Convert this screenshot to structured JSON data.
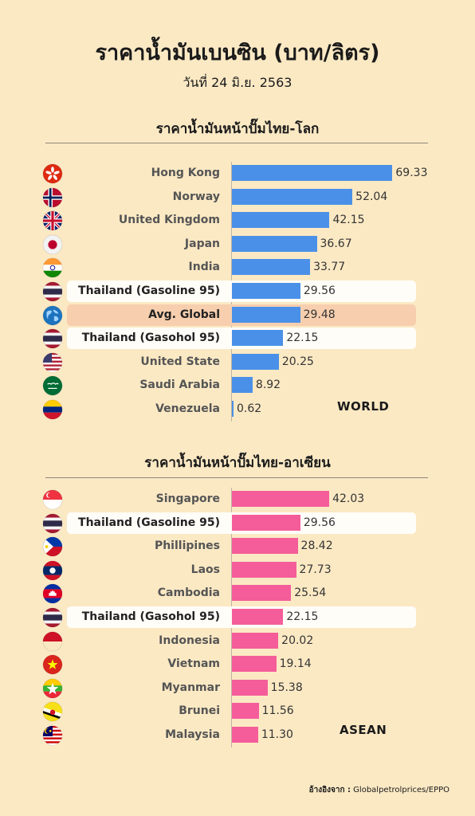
{
  "header": {
    "title": "ราคาน้ำมันเบนซิน (บาท/ลิตร)",
    "date": "วันที่ 24 มิ.ย. 2563"
  },
  "source": {
    "prefix": "อ้างอิงจาก :",
    "text": "Globalpetrolprices/EPPO"
  },
  "chart_data": [
    {
      "type": "bar",
      "orientation": "horizontal",
      "title": "ราคาน้ำมันหน้าปั๊มไทย-โลก",
      "tag": "WORLD",
      "color": "#4a90e8",
      "xlim": [
        0,
        70
      ],
      "categories": [
        "Hong Kong",
        "Norway",
        "United Kingdom",
        "Japan",
        "India",
        "Thailand (Gasoline 95)",
        "Avg. Global",
        "Thailand (Gasohol 95)",
        "United State",
        "Saudi Arabia",
        "Venezuela"
      ],
      "values": [
        69.33,
        52.04,
        42.15,
        36.67,
        33.77,
        29.56,
        29.48,
        22.15,
        20.25,
        8.92,
        0.62
      ],
      "highlights": [
        "none",
        "none",
        "none",
        "none",
        "none",
        "white",
        "peach",
        "white",
        "none",
        "none",
        "none"
      ],
      "flags": [
        "hong-kong-flag-icon",
        "norway-flag-icon",
        "uk-flag-icon",
        "japan-flag-icon",
        "india-flag-icon",
        "thailand-flag-icon",
        "globe-icon",
        "thailand-flag-icon",
        "usa-flag-icon",
        "saudi-arabia-flag-icon",
        "venezuela-flag-icon"
      ]
    },
    {
      "type": "bar",
      "orientation": "horizontal",
      "title": "ราคาน้ำมันหน้าปั๊มไทย-อาเซียน",
      "tag": "ASEAN",
      "color": "#f45d9a",
      "xlim": [
        0,
        70
      ],
      "categories": [
        "Singapore",
        "Thailand (Gasoline 95)",
        "Phillipines",
        "Laos",
        "Cambodia",
        "Thailand (Gasohol 95)",
        "Indonesia",
        "Vietnam",
        "Myanmar",
        "Brunei",
        "Malaysia"
      ],
      "values": [
        42.03,
        29.56,
        28.42,
        27.73,
        25.54,
        22.15,
        20.02,
        19.14,
        15.38,
        11.56,
        11.3
      ],
      "highlights": [
        "none",
        "white",
        "none",
        "none",
        "none",
        "white",
        "none",
        "none",
        "none",
        "none",
        "none"
      ],
      "flags": [
        "singapore-flag-icon",
        "thailand-flag-icon",
        "philippines-flag-icon",
        "laos-flag-icon",
        "cambodia-flag-icon",
        "thailand-flag-icon",
        "indonesia-flag-icon",
        "vietnam-flag-icon",
        "myanmar-flag-icon",
        "brunei-flag-icon",
        "malaysia-flag-icon"
      ]
    }
  ]
}
